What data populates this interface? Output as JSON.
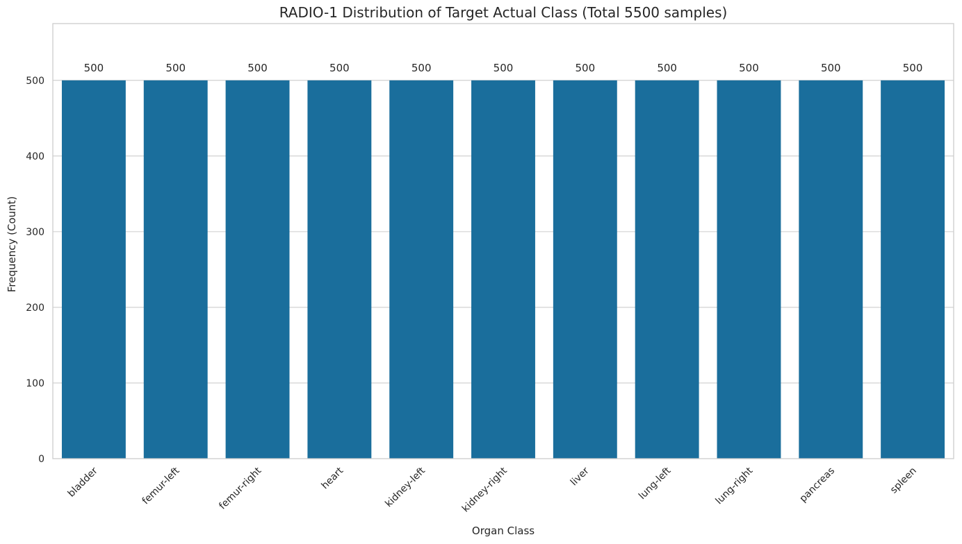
{
  "chart_data": {
    "type": "bar",
    "title": "RADIO-1 Distribution of Target Actual Class (Total 5500 samples)",
    "xlabel": "Organ Class",
    "ylabel": "Frequency (Count)",
    "categories": [
      "bladder",
      "femur-left",
      "femur-right",
      "heart",
      "kidney-left",
      "kidney-right",
      "liver",
      "lung-left",
      "lung-right",
      "pancreas",
      "spleen"
    ],
    "values": [
      500,
      500,
      500,
      500,
      500,
      500,
      500,
      500,
      500,
      500,
      500
    ],
    "data_labels": [
      "500",
      "500",
      "500",
      "500",
      "500",
      "500",
      "500",
      "500",
      "500",
      "500",
      "500"
    ],
    "yticks": [
      0,
      100,
      200,
      300,
      400,
      500
    ],
    "ylim": [
      0,
      575
    ],
    "grid": true,
    "legend": "none",
    "bar_color": "#1a6e9c"
  }
}
